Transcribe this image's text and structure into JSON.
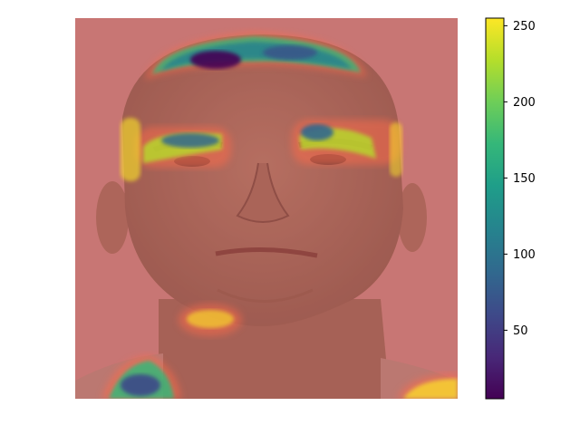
{
  "figure": {
    "image": {
      "subject": "face-photo",
      "background_color": "#c9827e",
      "skin_color": "#a86d5c"
    },
    "overlay": {
      "colormap": "viridis",
      "regions": [
        {
          "name": "forehead-hairline",
          "level": 40
        },
        {
          "name": "left-eyebrow",
          "level": 120
        },
        {
          "name": "right-eyebrow",
          "level": 110
        },
        {
          "name": "neck-left",
          "level": 230
        },
        {
          "name": "bottom-left-shoulder",
          "level": 60
        },
        {
          "name": "bottom-right-shoulder",
          "level": 220
        }
      ]
    },
    "colorbar": {
      "min": 5,
      "max": 255,
      "ticks": [
        50,
        100,
        150,
        200,
        250
      ],
      "colors": [
        "#440154",
        "#482878",
        "#3e4989",
        "#31688e",
        "#26828e",
        "#1f9e89",
        "#35b779",
        "#6ece58",
        "#b5de2b",
        "#fde725"
      ]
    }
  }
}
